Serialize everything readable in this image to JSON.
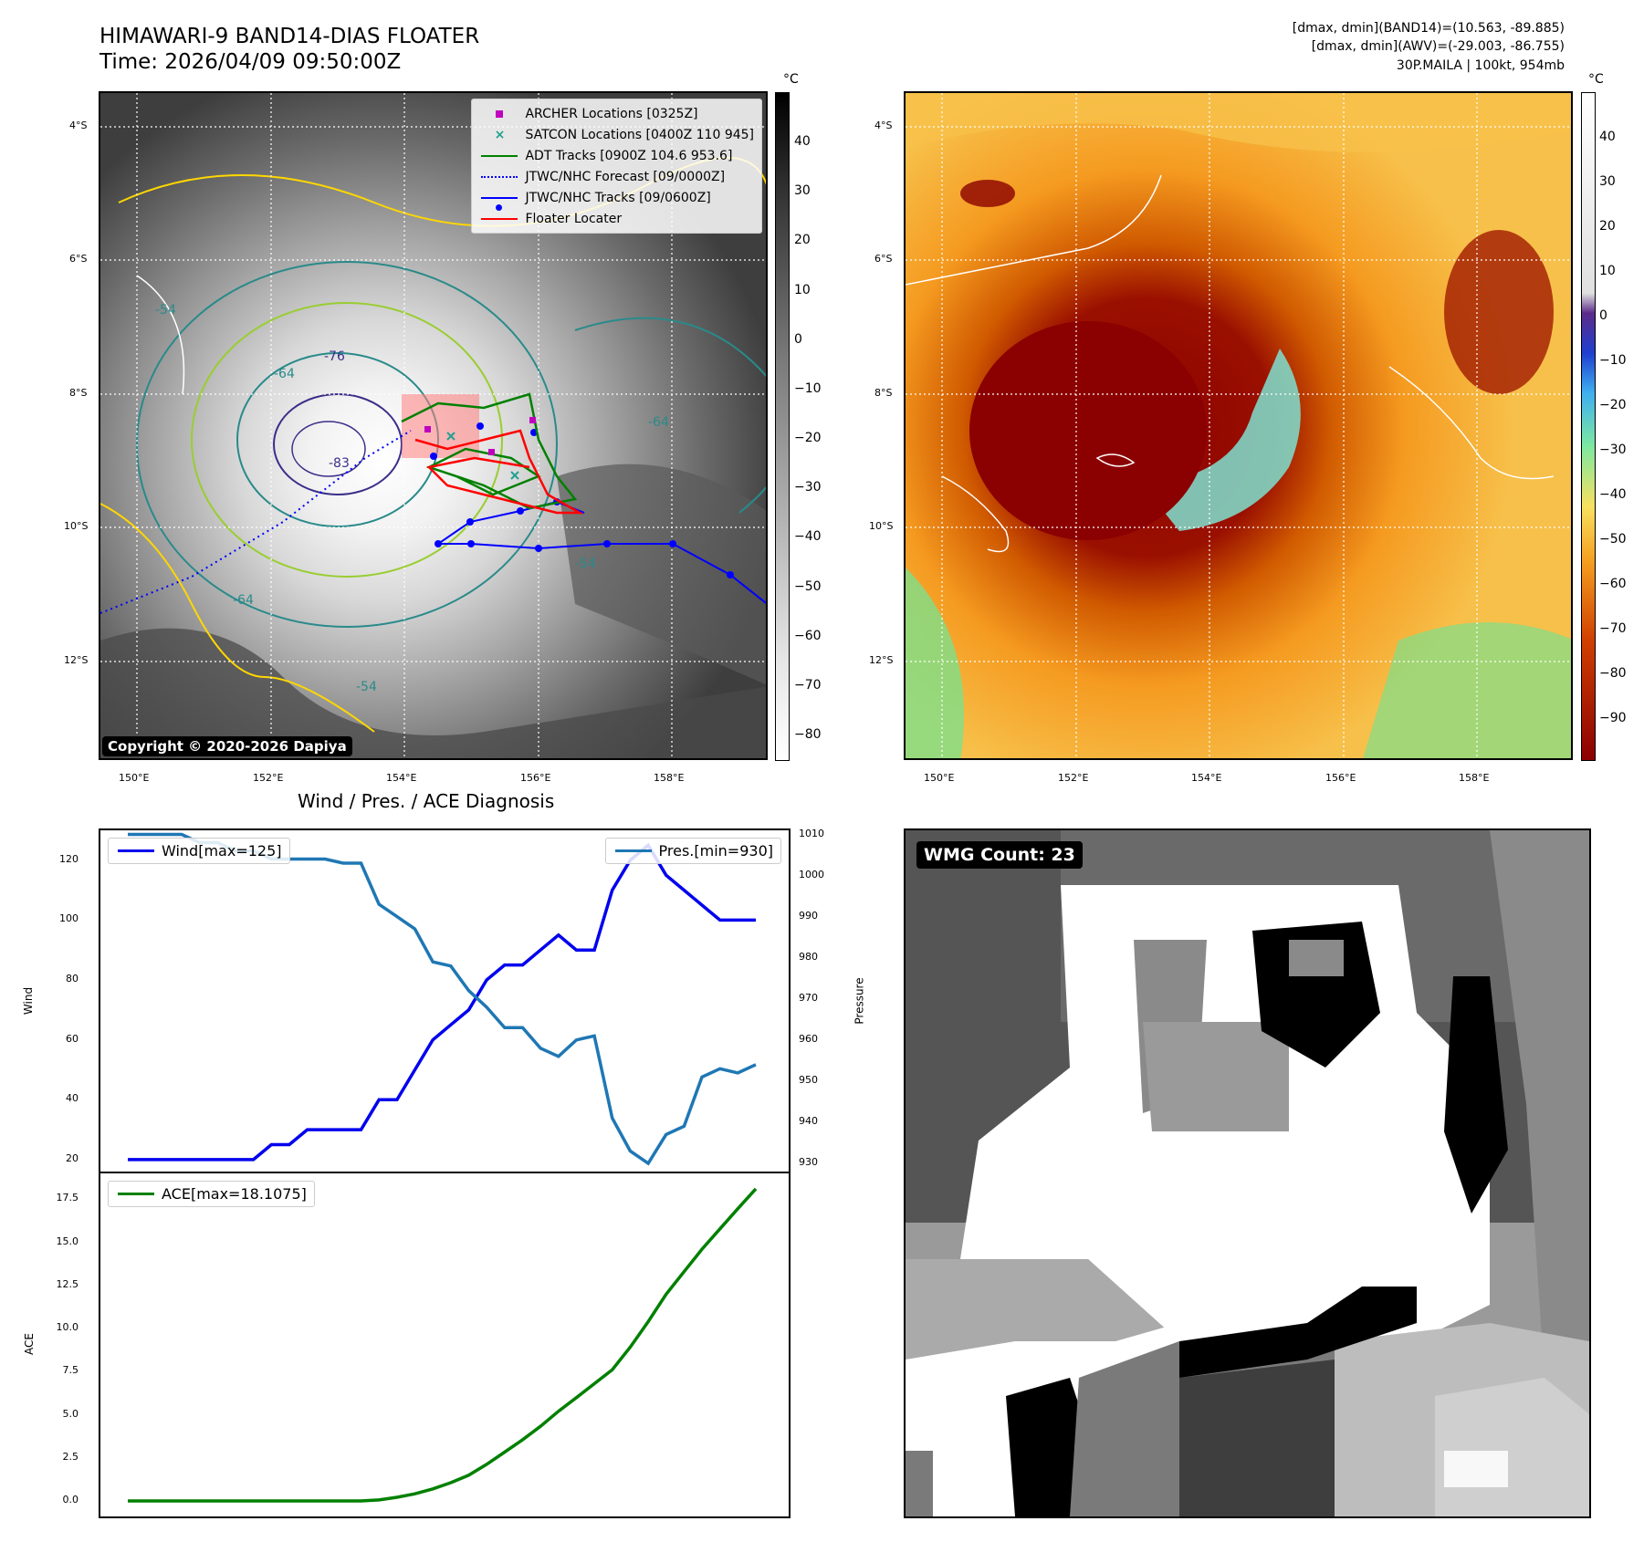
{
  "header": {
    "title_line1": "HIMAWARI-9 BAND14-DIAS FLOATER",
    "title_line2": "Time: 2026/04/09 09:50:00Z",
    "info_line1": "[dmax, dmin](BAND14)=(10.563, -89.885)",
    "info_line2": "[dmax, dmin](AWV)=(-29.003, -86.755)",
    "info_line3": "30P.MAILA | 100kt, 954mb"
  },
  "map_axes": {
    "lat_labels": [
      "4°S",
      "6°S",
      "8°S",
      "10°S",
      "12°S"
    ],
    "lon_labels": [
      "150°E",
      "152°E",
      "154°E",
      "156°E",
      "158°E"
    ]
  },
  "ir_panel": {
    "copyright": "Copyright © 2020-2026 Dapiya",
    "contour_labels": [
      "-54",
      "-64",
      "-76",
      "-83",
      "-64",
      "-54",
      "-64",
      "-54"
    ],
    "colorbar": {
      "unit": "°C",
      "ticks": [
        "40",
        "30",
        "20",
        "10",
        "0",
        "−10",
        "−20",
        "−30",
        "−40",
        "−50",
        "−60",
        "−70",
        "−80"
      ]
    },
    "legend": [
      {
        "label": "ARCHER Locations [0325Z]",
        "color": "#c000c0",
        "symbol": "square"
      },
      {
        "label": "SATCON Locations [0400Z 110 945]",
        "color": "#20a090",
        "symbol": "x"
      },
      {
        "label": "ADT Tracks [0900Z 104.6 953.6]",
        "color": "#008000",
        "symbol": "line"
      },
      {
        "label": "JTWC/NHC Forecast [09/0000Z]",
        "color": "#0000ff",
        "symbol": "dotted"
      },
      {
        "label": "JTWC/NHC Tracks [09/0600Z]",
        "color": "#0000ff",
        "symbol": "line-dot"
      },
      {
        "label": "Floater Locater",
        "color": "#ff0000",
        "symbol": "line"
      }
    ]
  },
  "awv_panel": {
    "colorbar": {
      "unit": "°C",
      "ticks": [
        "40",
        "30",
        "20",
        "10",
        "0",
        "−10",
        "−20",
        "−30",
        "−40",
        "−50",
        "−60",
        "−70",
        "−80",
        "−90"
      ]
    }
  },
  "wmg_panel": {
    "badge": "WMG Count: 23"
  },
  "chart_data": [
    {
      "type": "line",
      "title": "Wind / Pres. / ACE Diagnosis",
      "ylabel": "Wind",
      "y2label": "Pressure",
      "ylim": [
        16,
        130
      ],
      "y2lim": [
        928,
        1011
      ],
      "yticks": [
        "120",
        "100",
        "80",
        "60",
        "40",
        "20"
      ],
      "y2ticks": [
        "1010",
        "1000",
        "990",
        "980",
        "970",
        "960",
        "950",
        "940",
        "930"
      ],
      "series": [
        {
          "name": "Wind[max=125]",
          "axis": "left",
          "color": "#0000ee",
          "values": [
            20,
            20,
            20,
            20,
            20,
            20,
            20,
            20,
            25,
            25,
            30,
            30,
            30,
            30,
            40,
            40,
            50,
            60,
            65,
            70,
            80,
            85,
            85,
            90,
            95,
            90,
            90,
            110,
            120,
            125,
            115,
            110,
            105,
            100,
            100,
            100
          ]
        },
        {
          "name": "Pres.[min=930]",
          "axis": "right",
          "color": "#1f77b4",
          "values": [
            1010,
            1010,
            1010,
            1010,
            1008,
            1008,
            1006,
            1006,
            1004,
            1004,
            1004,
            1004,
            1003,
            1003,
            993,
            990,
            987,
            979,
            978,
            972,
            968,
            963,
            963,
            958,
            956,
            960,
            961,
            941,
            933,
            930,
            937,
            939,
            951,
            953,
            952,
            954
          ]
        }
      ]
    },
    {
      "type": "line",
      "ylabel": "ACE",
      "ylim": [
        -0.9,
        19
      ],
      "yticks": [
        "17.5",
        "15.0",
        "12.5",
        "10.0",
        "7.5",
        "5.0",
        "2.5",
        "0.0"
      ],
      "series": [
        {
          "name": "ACE[max=18.1075]",
          "color": "#008000",
          "values": [
            0,
            0,
            0,
            0,
            0,
            0,
            0,
            0,
            0,
            0,
            0,
            0,
            0,
            0,
            0.06,
            0.21,
            0.41,
            0.7,
            1.06,
            1.49,
            2.12,
            2.83,
            3.55,
            4.33,
            5.2,
            5.99,
            6.8,
            7.61,
            8.92,
            10.4,
            11.99,
            13.3,
            14.6,
            15.78,
            16.95,
            18.1075
          ]
        }
      ]
    }
  ]
}
